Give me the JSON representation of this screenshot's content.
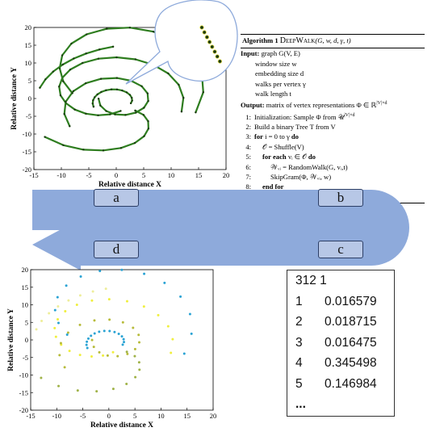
{
  "chart_data": [
    {
      "type": "scatter",
      "title": "",
      "xlabel": "Relative distance X",
      "ylabel": "Relative distance Y",
      "xlim": [
        -15,
        20
      ],
      "ylim": [
        -20,
        20
      ],
      "xticks": [
        -15,
        -10,
        -5,
        0,
        5,
        10,
        15,
        20
      ],
      "yticks": [
        -20,
        -15,
        -10,
        -5,
        0,
        5,
        10,
        15,
        20
      ],
      "grid": false,
      "marker_color": "#1b3a10",
      "spiral_color": "#2e7d1f",
      "series": [
        {
          "points": [
            [
              -4.13,
              -2.31
            ],
            [
              -4.29,
              -1.41
            ],
            [
              -4.22,
              -0.51
            ],
            [
              -3.93,
              0.36
            ],
            [
              -3.43,
              1.17
            ],
            [
              -2.73,
              1.84
            ],
            [
              -1.86,
              2.32
            ],
            [
              -0.87,
              2.56
            ],
            [
              0.14,
              2.54
            ],
            [
              1.09,
              2.25
            ],
            [
              1.9,
              1.72
            ],
            [
              2.5,
              1.01
            ],
            [
              2.83,
              0.21
            ],
            [
              2.89,
              -0.6
            ],
            [
              2.66,
              -1.34
            ]
          ]
        },
        {
          "points": [
            [
              0.8,
              -3.5
            ],
            [
              -1.13,
              -4.45
            ],
            [
              -3.31,
              -4.72
            ],
            [
              -5.53,
              -4.27
            ],
            [
              -7.55,
              -3.12
            ],
            [
              -9.15,
              -1.35
            ],
            [
              -10.15,
              0.88
            ],
            [
              -10.4,
              3.35
            ],
            [
              -9.81,
              5.86
            ],
            [
              -8.37,
              8.15
            ],
            [
              -6.13,
              10.0
            ],
            [
              -3.24,
              11.2
            ],
            [
              0.07,
              11.58
            ],
            [
              3.5,
              11.02
            ],
            [
              6.73,
              9.5
            ],
            [
              9.47,
              7.05
            ],
            [
              11.38,
              3.87
            ],
            [
              12.24,
              0.2
            ],
            [
              11.9,
              -3.68
            ]
          ]
        },
        {
          "points": [
            [
              3.45,
              -3.39
            ],
            [
              4.97,
              -4.62
            ],
            [
              5.81,
              -6.39
            ],
            [
              5.87,
              -8.48
            ],
            [
              5.07,
              -10.61
            ],
            [
              3.38,
              -12.52
            ],
            [
              0.86,
              -13.94
            ],
            [
              -2.35,
              -14.62
            ],
            [
              -5.97,
              -14.4
            ],
            [
              -9.65,
              -13.14
            ],
            [
              -13.0,
              -10.81
            ]
          ]
        },
        {
          "points": [
            [
              -3.22,
              -0.04
            ],
            [
              -2.89,
              -1.98
            ],
            [
              -1.83,
              -3.53
            ],
            [
              -0.23,
              -4.46
            ],
            [
              1.68,
              -4.63
            ],
            [
              3.56,
              -3.98
            ],
            [
              5.04,
              -2.61
            ],
            [
              5.83,
              -0.7
            ],
            [
              5.71,
              1.44
            ],
            [
              4.64,
              3.46
            ],
            [
              2.7,
              5.01
            ],
            [
              0.12,
              5.77
            ],
            [
              -2.77,
              5.54
            ],
            [
              -5.55,
              4.29
            ],
            [
              -7.82,
              2.06
            ],
            [
              -9.2,
              -0.92
            ],
            [
              -9.46,
              -4.35
            ],
            [
              -8.48,
              -7.8
            ]
          ]
        },
        {
          "points": [
            [
              -8.0,
              1.5
            ],
            [
              -9.66,
              4.84
            ],
            [
              -10.31,
              8.49
            ],
            [
              -9.84,
              12.15
            ],
            [
              -8.17,
              15.45
            ],
            [
              -5.39,
              18.06
            ],
            [
              -1.72,
              19.64
            ],
            [
              2.48,
              19.95
            ],
            [
              6.77,
              18.82
            ],
            [
              10.68,
              16.23
            ],
            [
              13.74,
              12.32
            ],
            [
              15.57,
              7.35
            ],
            [
              15.85,
              1.76
            ],
            [
              14.47,
              -3.9
            ]
          ]
        },
        {
          "points": [
            [
              -0.57,
              14.58
            ],
            [
              -3.06,
              13.79
            ],
            [
              -5.49,
              12.67
            ],
            [
              -7.74,
              11.25
            ],
            [
              -9.75,
              9.55
            ],
            [
              -11.49,
              7.58
            ],
            [
              -12.9,
              5.39
            ],
            [
              -13.91,
              3.03
            ]
          ]
        }
      ]
    },
    {
      "type": "scatter",
      "title": "",
      "xlabel": "Relative distance X",
      "ylabel": "Relative distance Y",
      "xlim": [
        -15,
        20
      ],
      "ylim": [
        -20,
        20
      ],
      "xticks": [
        -15,
        -10,
        -5,
        0,
        5,
        10,
        15,
        20
      ],
      "yticks": [
        -20,
        -15,
        -10,
        -5,
        0,
        5,
        10,
        15,
        20
      ],
      "grid": false,
      "series": [
        {
          "color": "#2aa3d4",
          "points": [
            [
              -4.13,
              -2.31
            ],
            [
              -4.29,
              -1.41
            ],
            [
              -4.22,
              -0.51
            ],
            [
              -3.93,
              0.36
            ],
            [
              -3.43,
              1.17
            ],
            [
              -2.73,
              1.84
            ],
            [
              -1.86,
              2.32
            ],
            [
              -0.87,
              2.56
            ],
            [
              0.14,
              2.54
            ],
            [
              1.09,
              2.25
            ],
            [
              1.9,
              1.72
            ],
            [
              2.5,
              1.01
            ],
            [
              2.83,
              0.21
            ],
            [
              2.89,
              -0.6
            ],
            [
              2.66,
              -1.34
            ]
          ]
        },
        {
          "color": "#f0ef3e",
          "points": [
            [
              0.8,
              -3.5
            ],
            [
              -1.13,
              -4.45
            ],
            [
              -3.31,
              -4.72
            ],
            [
              -5.53,
              -4.27
            ],
            [
              -7.55,
              -3.12
            ],
            [
              -9.15,
              -1.35
            ],
            [
              -10.15,
              0.88
            ],
            [
              -10.4,
              3.35
            ],
            [
              -9.81,
              5.86
            ],
            [
              -8.37,
              8.15
            ],
            [
              -6.13,
              10.0
            ],
            [
              -3.24,
              11.2
            ],
            [
              0.07,
              11.58
            ],
            [
              3.5,
              11.02
            ],
            [
              6.73,
              9.5
            ],
            [
              9.47,
              7.05
            ],
            [
              11.38,
              3.87
            ],
            [
              12.24,
              0.2
            ],
            [
              11.9,
              -3.68
            ]
          ]
        },
        {
          "color": "#9fb247",
          "points": [
            [
              3.45,
              -3.39
            ],
            [
              4.97,
              -4.62
            ],
            [
              5.81,
              -6.39
            ],
            [
              5.87,
              -8.48
            ],
            [
              5.07,
              -10.61
            ],
            [
              3.38,
              -12.52
            ],
            [
              0.86,
              -13.94
            ],
            [
              -2.35,
              -14.62
            ],
            [
              -5.97,
              -14.4
            ],
            [
              -9.65,
              -13.14
            ],
            [
              -13.0,
              -10.81
            ]
          ]
        },
        {
          "color": "#b7bb3a",
          "points": [
            [
              -3.22,
              -0.04
            ],
            [
              -2.89,
              -1.98
            ],
            [
              -1.83,
              -3.53
            ],
            [
              -0.23,
              -4.46
            ],
            [
              1.68,
              -4.63
            ],
            [
              3.56,
              -3.98
            ],
            [
              5.04,
              -2.61
            ],
            [
              5.83,
              -0.7
            ],
            [
              5.71,
              1.44
            ],
            [
              4.64,
              3.46
            ],
            [
              2.7,
              5.01
            ],
            [
              0.12,
              5.77
            ],
            [
              -2.77,
              5.54
            ],
            [
              -5.55,
              4.29
            ],
            [
              -7.82,
              2.06
            ],
            [
              -9.2,
              -0.92
            ],
            [
              -9.46,
              -4.35
            ],
            [
              -8.48,
              -7.8
            ]
          ]
        },
        {
          "color": "#2aa3d4",
          "points": [
            [
              -8.0,
              1.5
            ],
            [
              -9.66,
              4.84
            ],
            [
              -10.31,
              8.49
            ],
            [
              -9.84,
              12.15
            ],
            [
              -8.17,
              15.45
            ],
            [
              -5.39,
              18.06
            ],
            [
              -1.72,
              19.64
            ],
            [
              2.48,
              19.95
            ],
            [
              6.77,
              18.82
            ],
            [
              10.68,
              16.23
            ],
            [
              13.74,
              12.32
            ],
            [
              15.57,
              7.35
            ],
            [
              15.85,
              1.76
            ],
            [
              14.47,
              -3.9
            ]
          ]
        },
        {
          "color": "#eeee9a",
          "points": [
            [
              -0.57,
              14.58
            ],
            [
              -3.06,
              13.79
            ],
            [
              -5.49,
              12.67
            ],
            [
              -7.74,
              11.25
            ],
            [
              -9.75,
              9.55
            ],
            [
              -11.49,
              7.58
            ],
            [
              -12.9,
              5.39
            ],
            [
              -13.91,
              3.03
            ]
          ]
        }
      ]
    }
  ],
  "algorithm": {
    "header": "Algorithm 1",
    "name_prefix": "D",
    "name_rest": "EEP",
    "name_prefix2": "W",
    "name_rest2": "ALK",
    "args": "(G, w, d, γ, t)",
    "input_label": "Input:",
    "input_text": "graph G(V, E)",
    "inputs": [
      "window size w",
      "embedding size d",
      "walks per vertex γ",
      "walk length t"
    ],
    "output_label": "Output:",
    "output_text": "matrix of vertex representations Φ ∈ ℝ",
    "output_sup": "|V|×d",
    "steps": [
      {
        "n": "1:",
        "text": "Initialization: Sample Φ from 𝒰",
        "sup": "|V|×d"
      },
      {
        "n": "2:",
        "text": "Build a binary Tree T from V"
      },
      {
        "n": "3:",
        "kw": "for",
        "text": " i = 0 to γ ",
        "kw2": "do"
      },
      {
        "n": "4:",
        "text": "𝒪 = Shuffle(V)"
      },
      {
        "n": "5:",
        "kw": "for each",
        "text": " vᵢ ∈ 𝒪 ",
        "kw2": "do"
      },
      {
        "n": "6:",
        "text": "𝒲ᵥᵢ = RandomWalk(G, vᵢ,t)"
      },
      {
        "n": "7:",
        "text": "SkipGram(Φ, 𝒲ᵥᵢ, w)"
      },
      {
        "n": "8:",
        "kw": "end for",
        "text": ""
      },
      {
        "n": "9:",
        "kw": "end for",
        "text": ""
      }
    ]
  },
  "steps": {
    "a": "a",
    "b": "b",
    "c": "c",
    "d": "d"
  },
  "colors": {
    "arrow": "#8eaadb",
    "step_fill": "#b7c7e6",
    "step_border": "#2c3e66"
  },
  "output_table": {
    "header": "312 1",
    "rows": [
      {
        "id": "1",
        "value": "0.016579"
      },
      {
        "id": "2",
        "value": "0.018715"
      },
      {
        "id": "3",
        "value": "0.016475"
      },
      {
        "id": "4",
        "value": "0.345498"
      },
      {
        "id": "5",
        "value": "0.146984"
      }
    ],
    "ellipsis": "..."
  }
}
